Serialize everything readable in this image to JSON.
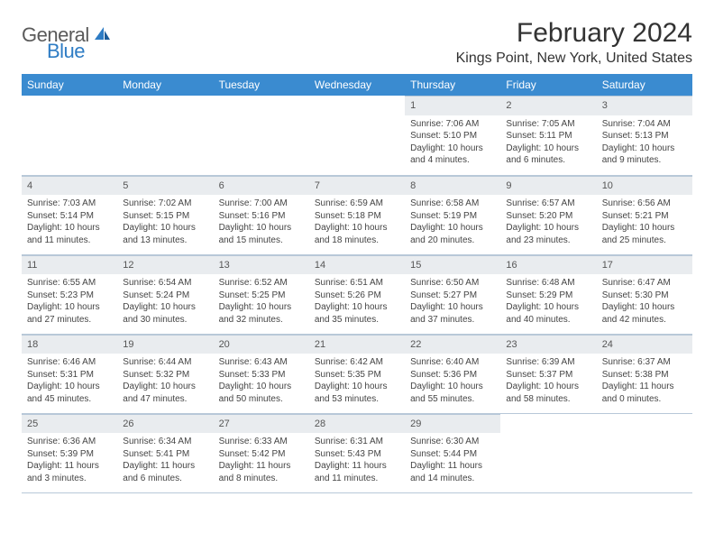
{
  "logo": {
    "word1": "General",
    "word2": "Blue"
  },
  "title": "February 2024",
  "location": "Kings Point, New York, United States",
  "header_bg": "#3a8bd0",
  "daynum_bg": "#e9ecef",
  "border_color": "#b8c8d8",
  "daynames": [
    "Sunday",
    "Monday",
    "Tuesday",
    "Wednesday",
    "Thursday",
    "Friday",
    "Saturday"
  ],
  "weeks": [
    [
      null,
      null,
      null,
      null,
      {
        "n": "1",
        "sr": "Sunrise: 7:06 AM",
        "ss": "Sunset: 5:10 PM",
        "dl": "Daylight: 10 hours and 4 minutes."
      },
      {
        "n": "2",
        "sr": "Sunrise: 7:05 AM",
        "ss": "Sunset: 5:11 PM",
        "dl": "Daylight: 10 hours and 6 minutes."
      },
      {
        "n": "3",
        "sr": "Sunrise: 7:04 AM",
        "ss": "Sunset: 5:13 PM",
        "dl": "Daylight: 10 hours and 9 minutes."
      }
    ],
    [
      {
        "n": "4",
        "sr": "Sunrise: 7:03 AM",
        "ss": "Sunset: 5:14 PM",
        "dl": "Daylight: 10 hours and 11 minutes."
      },
      {
        "n": "5",
        "sr": "Sunrise: 7:02 AM",
        "ss": "Sunset: 5:15 PM",
        "dl": "Daylight: 10 hours and 13 minutes."
      },
      {
        "n": "6",
        "sr": "Sunrise: 7:00 AM",
        "ss": "Sunset: 5:16 PM",
        "dl": "Daylight: 10 hours and 15 minutes."
      },
      {
        "n": "7",
        "sr": "Sunrise: 6:59 AM",
        "ss": "Sunset: 5:18 PM",
        "dl": "Daylight: 10 hours and 18 minutes."
      },
      {
        "n": "8",
        "sr": "Sunrise: 6:58 AM",
        "ss": "Sunset: 5:19 PM",
        "dl": "Daylight: 10 hours and 20 minutes."
      },
      {
        "n": "9",
        "sr": "Sunrise: 6:57 AM",
        "ss": "Sunset: 5:20 PM",
        "dl": "Daylight: 10 hours and 23 minutes."
      },
      {
        "n": "10",
        "sr": "Sunrise: 6:56 AM",
        "ss": "Sunset: 5:21 PM",
        "dl": "Daylight: 10 hours and 25 minutes."
      }
    ],
    [
      {
        "n": "11",
        "sr": "Sunrise: 6:55 AM",
        "ss": "Sunset: 5:23 PM",
        "dl": "Daylight: 10 hours and 27 minutes."
      },
      {
        "n": "12",
        "sr": "Sunrise: 6:54 AM",
        "ss": "Sunset: 5:24 PM",
        "dl": "Daylight: 10 hours and 30 minutes."
      },
      {
        "n": "13",
        "sr": "Sunrise: 6:52 AM",
        "ss": "Sunset: 5:25 PM",
        "dl": "Daylight: 10 hours and 32 minutes."
      },
      {
        "n": "14",
        "sr": "Sunrise: 6:51 AM",
        "ss": "Sunset: 5:26 PM",
        "dl": "Daylight: 10 hours and 35 minutes."
      },
      {
        "n": "15",
        "sr": "Sunrise: 6:50 AM",
        "ss": "Sunset: 5:27 PM",
        "dl": "Daylight: 10 hours and 37 minutes."
      },
      {
        "n": "16",
        "sr": "Sunrise: 6:48 AM",
        "ss": "Sunset: 5:29 PM",
        "dl": "Daylight: 10 hours and 40 minutes."
      },
      {
        "n": "17",
        "sr": "Sunrise: 6:47 AM",
        "ss": "Sunset: 5:30 PM",
        "dl": "Daylight: 10 hours and 42 minutes."
      }
    ],
    [
      {
        "n": "18",
        "sr": "Sunrise: 6:46 AM",
        "ss": "Sunset: 5:31 PM",
        "dl": "Daylight: 10 hours and 45 minutes."
      },
      {
        "n": "19",
        "sr": "Sunrise: 6:44 AM",
        "ss": "Sunset: 5:32 PM",
        "dl": "Daylight: 10 hours and 47 minutes."
      },
      {
        "n": "20",
        "sr": "Sunrise: 6:43 AM",
        "ss": "Sunset: 5:33 PM",
        "dl": "Daylight: 10 hours and 50 minutes."
      },
      {
        "n": "21",
        "sr": "Sunrise: 6:42 AM",
        "ss": "Sunset: 5:35 PM",
        "dl": "Daylight: 10 hours and 53 minutes."
      },
      {
        "n": "22",
        "sr": "Sunrise: 6:40 AM",
        "ss": "Sunset: 5:36 PM",
        "dl": "Daylight: 10 hours and 55 minutes."
      },
      {
        "n": "23",
        "sr": "Sunrise: 6:39 AM",
        "ss": "Sunset: 5:37 PM",
        "dl": "Daylight: 10 hours and 58 minutes."
      },
      {
        "n": "24",
        "sr": "Sunrise: 6:37 AM",
        "ss": "Sunset: 5:38 PM",
        "dl": "Daylight: 11 hours and 0 minutes."
      }
    ],
    [
      {
        "n": "25",
        "sr": "Sunrise: 6:36 AM",
        "ss": "Sunset: 5:39 PM",
        "dl": "Daylight: 11 hours and 3 minutes."
      },
      {
        "n": "26",
        "sr": "Sunrise: 6:34 AM",
        "ss": "Sunset: 5:41 PM",
        "dl": "Daylight: 11 hours and 6 minutes."
      },
      {
        "n": "27",
        "sr": "Sunrise: 6:33 AM",
        "ss": "Sunset: 5:42 PM",
        "dl": "Daylight: 11 hours and 8 minutes."
      },
      {
        "n": "28",
        "sr": "Sunrise: 6:31 AM",
        "ss": "Sunset: 5:43 PM",
        "dl": "Daylight: 11 hours and 11 minutes."
      },
      {
        "n": "29",
        "sr": "Sunrise: 6:30 AM",
        "ss": "Sunset: 5:44 PM",
        "dl": "Daylight: 11 hours and 14 minutes."
      },
      null,
      null
    ]
  ]
}
